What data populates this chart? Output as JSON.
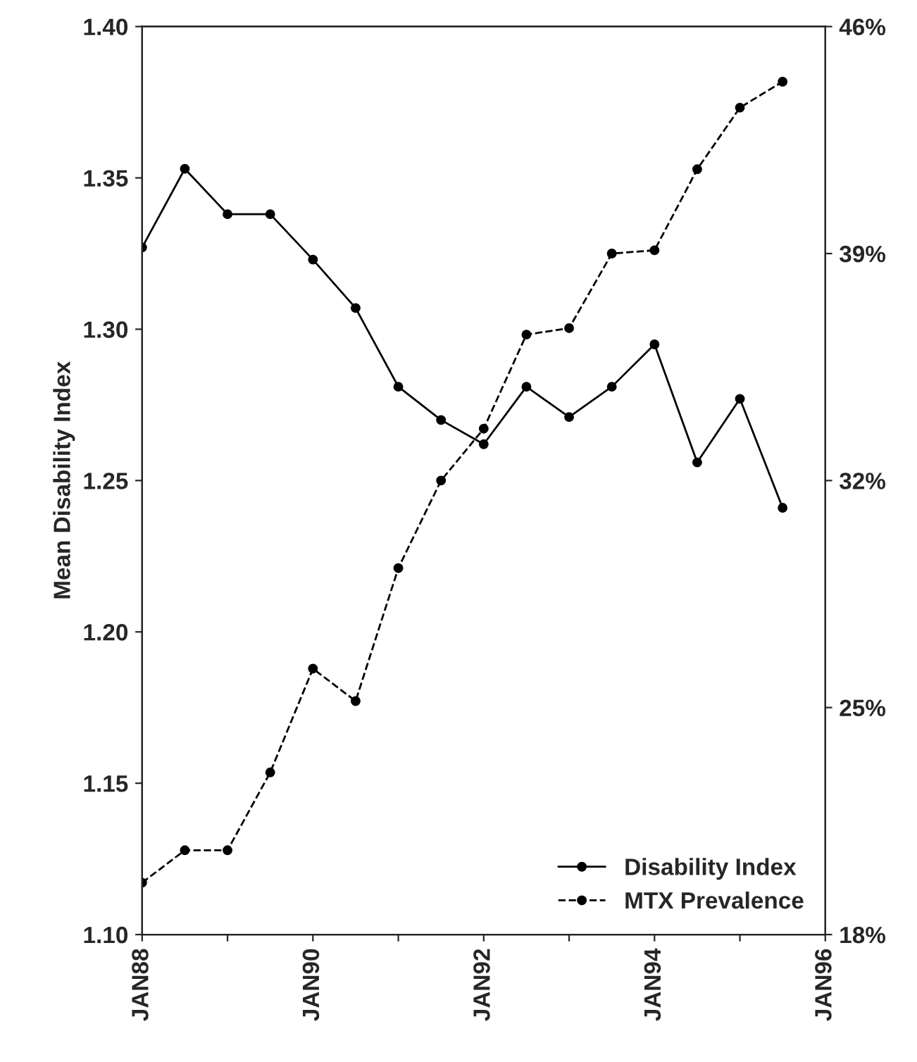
{
  "chart_data": {
    "type": "line",
    "ylabel": "Mean Disability Index",
    "x": [
      "1988-01",
      "1988-07",
      "1989-01",
      "1989-07",
      "1990-01",
      "1990-07",
      "1991-01",
      "1991-07",
      "1992-01",
      "1992-07",
      "1993-01",
      "1993-07",
      "1994-01",
      "1994-07",
      "1995-01",
      "1995-07"
    ],
    "series": [
      {
        "name": "Disability Index",
        "color": "#000000",
        "line_style": "solid",
        "values": [
          1.327,
          1.353,
          1.338,
          1.338,
          1.323,
          1.307,
          1.281,
          1.27,
          1.262,
          1.281,
          1.271,
          1.281,
          1.295,
          1.256,
          1.277,
          1.241
        ]
      },
      {
        "name": "MTX Prevalence",
        "color": "#000000",
        "line_style": "dashed",
        "axis": "y2",
        "values": [
          19.6,
          20.6,
          20.6,
          23.0,
          26.2,
          25.2,
          29.3,
          32.0,
          33.6,
          36.5,
          36.7,
          39.0,
          39.1,
          41.6,
          43.5,
          44.3
        ]
      }
    ],
    "xlim": [
      "1988-01",
      "1996-01"
    ],
    "xticks": [
      {
        "value": "1988-01",
        "label": "JAN88"
      },
      {
        "value": "1989-01",
        "label": null
      },
      {
        "value": "1990-01",
        "label": "JAN90"
      },
      {
        "value": "1991-01",
        "label": null
      },
      {
        "value": "1992-01",
        "label": "JAN92"
      },
      {
        "value": "1993-01",
        "label": null
      },
      {
        "value": "1994-01",
        "label": "JAN94"
      },
      {
        "value": "1995-01",
        "label": null
      },
      {
        "value": "1996-01",
        "label": "JAN96"
      }
    ],
    "ylim": [
      1.1,
      1.4
    ],
    "yticks": [
      {
        "value": 1.1,
        "label": "1.10"
      },
      1.15,
      {
        "value": 1.2,
        "label": "1.20"
      },
      1.25,
      {
        "value": 1.3,
        "label": "1.30"
      },
      1.35,
      {
        "value": 1.4,
        "label": "1.40"
      }
    ],
    "y2lim": [
      18,
      46
    ],
    "y2ticks": [
      {
        "value": 18,
        "label": "18%"
      },
      {
        "value": 25,
        "label": "25%"
      },
      {
        "value": 32,
        "label": "32%"
      },
      {
        "value": 39,
        "label": "39%"
      },
      {
        "value": 46,
        "label": "46%"
      }
    ],
    "marker": "circle",
    "grid": false,
    "legend": "bottom right"
  }
}
